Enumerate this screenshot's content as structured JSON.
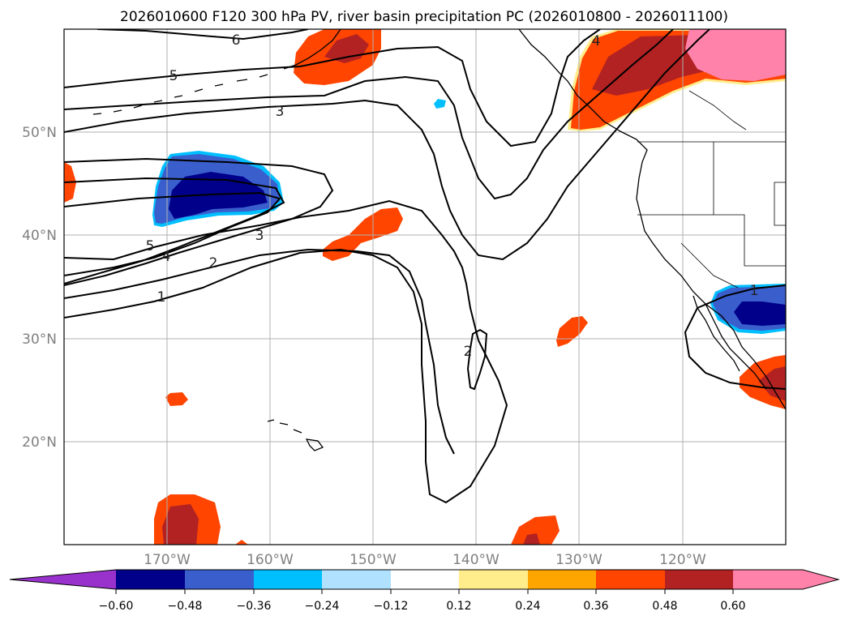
{
  "title": "2026010600 F120 300 hPa PV, river basin precipitation PC (2026010800 - 2026011100)",
  "map": {
    "lat_labels": [
      "50°N",
      "40°N",
      "30°N",
      "20°N"
    ],
    "lon_labels": [
      "170°W",
      "160°W",
      "150°W",
      "140°W",
      "130°W",
      "120°W"
    ],
    "contour_labels": [
      "6",
      "5",
      "3",
      "5",
      "4",
      "3",
      "2",
      "1",
      "2",
      "1",
      "4"
    ]
  },
  "colorbar": {
    "ticks": [
      "−0.60",
      "−0.48",
      "−0.36",
      "−0.24",
      "−0.12",
      "0.12",
      "0.24",
      "0.36",
      "0.48",
      "0.60"
    ],
    "colors": [
      "#9932cc",
      "#00008b",
      "#3a5fcd",
      "#00bfff",
      "#b0e2ff",
      "#ffffff",
      "#ffec8b",
      "#ffa500",
      "#ff4500",
      "#b22222",
      "#ff82ab"
    ]
  }
}
